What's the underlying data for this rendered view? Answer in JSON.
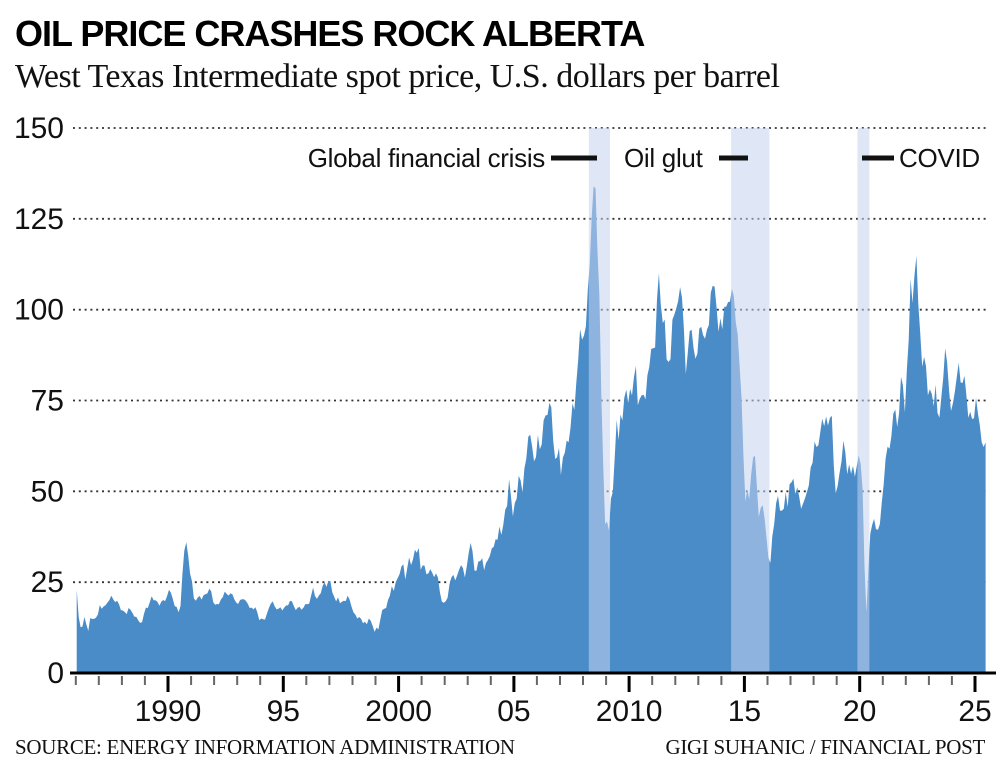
{
  "header": {
    "title": "OIL PRICE CRASHES ROCK ALBERTA",
    "subtitle": "West Texas Intermediate spot price, U.S. dollars per barrel"
  },
  "footer": {
    "source": "SOURCE: ENERGY INFORMATION ADMINISTRATION",
    "credit": "GIGI SUHANIC / FINANCIAL POST"
  },
  "chart_data": {
    "type": "area",
    "title": "OIL PRICE CRASHES ROCK ALBERTA",
    "subtitle": "West Texas Intermediate spot price, U.S. dollars per barrel",
    "series_name": "WTI spot price",
    "unit": "U.S. dollars per barrel",
    "frequency": "monthly",
    "start": "1986-01",
    "end": "2025-06",
    "ylim": [
      0,
      150
    ],
    "yticks": [
      0,
      25,
      50,
      75,
      100,
      125,
      150
    ],
    "xticks": [
      {
        "year": 1990,
        "label": "1990"
      },
      {
        "year": 1995,
        "label": "95"
      },
      {
        "year": 2000,
        "label": "2000"
      },
      {
        "year": 2005,
        "label": "05"
      },
      {
        "year": 2010,
        "label": "2010"
      },
      {
        "year": 2015,
        "label": "15"
      },
      {
        "year": 2020,
        "label": "20"
      },
      {
        "year": 2025,
        "label": "25"
      }
    ],
    "minor_ticks": "every year 1986-2025",
    "grid": "horizontal dotted",
    "legend": "none",
    "area_color": "#4a8cc8",
    "band_color": "rgba(197,211,240,0.55)",
    "bands": [
      {
        "label": "Global financial crisis",
        "start_year": 2008.25,
        "end_year": 2009.17
      },
      {
        "label": "Oil glut",
        "start_year": 2014.42,
        "end_year": 2016.08
      },
      {
        "label": "COVID",
        "start_year": 2019.9,
        "end_year": 2020.42
      }
    ],
    "values_by_year": {
      "1986": [
        22.9,
        15.4,
        12.6,
        12.8,
        15.4,
        13.4,
        11.6,
        15.1,
        14.9,
        14.9,
        15.2,
        16.1
      ],
      "1987": [
        18.7,
        17.7,
        18.3,
        18.7,
        19.4,
        20.1,
        21.3,
        20.3,
        19.5,
        19.9,
        18.9,
        17.3
      ],
      "1988": [
        17.2,
        16.8,
        16.2,
        17.9,
        17.4,
        16.5,
        15.5,
        15.5,
        14.5,
        13.8,
        14.0,
        16.3
      ],
      "1989": [
        18.0,
        17.9,
        19.4,
        21.1,
        20.0,
        20.0,
        19.6,
        18.5,
        19.6,
        20.1,
        19.8,
        21.1
      ],
      "1990": [
        22.9,
        22.1,
        20.4,
        18.4,
        18.2,
        16.7,
        18.4,
        27.2,
        33.7,
        36.0,
        32.3,
        27.3
      ],
      "1991": [
        25.2,
        20.5,
        19.9,
        20.8,
        21.2,
        20.2,
        21.4,
        21.7,
        21.9,
        23.2,
        22.5,
        19.5
      ],
      "1992": [
        18.8,
        19.0,
        18.9,
        20.2,
        20.9,
        22.4,
        21.8,
        21.3,
        21.9,
        21.7,
        20.3,
        19.4
      ],
      "1993": [
        19.0,
        20.1,
        20.3,
        20.3,
        19.9,
        19.1,
        17.9,
        18.0,
        17.5,
        18.1,
        16.7,
        14.5
      ],
      "1994": [
        15.0,
        14.8,
        14.7,
        16.4,
        17.9,
        19.1,
        19.7,
        18.4,
        17.5,
        17.7,
        18.1,
        17.2
      ],
      "1995": [
        18.0,
        18.6,
        18.6,
        19.9,
        19.7,
        18.4,
        17.3,
        18.0,
        18.2,
        17.4,
        18.0,
        19.0
      ],
      "1996": [
        18.9,
        19.1,
        21.3,
        23.5,
        21.2,
        20.4,
        21.3,
        22.0,
        24.0,
        24.9,
        23.7,
        25.4
      ],
      "1997": [
        25.2,
        22.2,
        21.0,
        19.7,
        20.8,
        19.2,
        19.6,
        19.9,
        19.8,
        21.3,
        20.2,
        18.3
      ],
      "1998": [
        16.7,
        16.1,
        15.0,
        15.4,
        14.9,
        13.7,
        14.1,
        13.4,
        15.0,
        14.4,
        13.0,
        11.3
      ],
      "1999": [
        12.5,
        12.0,
        14.7,
        17.3,
        17.7,
        17.9,
        20.1,
        21.3,
        23.9,
        22.6,
        25.0,
        26.1
      ],
      "2000": [
        27.2,
        29.4,
        29.9,
        25.7,
        28.8,
        31.8,
        29.7,
        31.3,
        33.9,
        33.1,
        34.4,
        28.4
      ],
      "2001": [
        29.6,
        29.6,
        27.2,
        27.4,
        28.6,
        27.6,
        26.4,
        27.4,
        26.2,
        22.2,
        19.7,
        19.3
      ],
      "2002": [
        19.7,
        20.7,
        24.4,
        26.3,
        27.0,
        25.5,
        26.9,
        28.4,
        29.7,
        28.9,
        26.3,
        29.4
      ],
      "2003": [
        33.0,
        35.8,
        33.5,
        28.2,
        28.1,
        30.7,
        30.8,
        31.6,
        28.3,
        30.3,
        31.1,
        32.2
      ],
      "2004": [
        34.3,
        34.7,
        36.8,
        36.7,
        40.3,
        38.0,
        40.8,
        44.9,
        46.0,
        53.3,
        48.5,
        43.1
      ],
      "2005": [
        46.8,
        48.0,
        54.3,
        53.0,
        49.8,
        56.3,
        59.0,
        65.0,
        65.6,
        62.4,
        58.3,
        59.4
      ],
      "2006": [
        65.5,
        61.6,
        62.9,
        69.5,
        70.9,
        71.0,
        74.4,
        73.1,
        63.9,
        58.9,
        59.4,
        62.0
      ],
      "2007": [
        54.5,
        59.3,
        60.6,
        64.0,
        63.5,
        67.5,
        74.2,
        72.4,
        79.9,
        86.2,
        94.6,
        91.7
      ],
      "2008": [
        92.9,
        95.4,
        105.5,
        112.6,
        125.4,
        133.9,
        133.4,
        116.6,
        103.9,
        76.7,
        57.4,
        41.0
      ],
      "2009": [
        41.7,
        39.2,
        48.0,
        49.8,
        59.2,
        69.7,
        64.1,
        71.1,
        69.5,
        75.8,
        78.0,
        74.3
      ],
      "2010": [
        78.2,
        76.4,
        81.3,
        84.5,
        73.7,
        75.4,
        76.4,
        76.6,
        75.3,
        81.9,
        84.3,
        89.2
      ],
      "2011": [
        89.4,
        89.6,
        102.9,
        110.0,
        101.3,
        96.3,
        97.3,
        86.3,
        85.6,
        86.4,
        97.2,
        98.6
      ],
      "2012": [
        100.3,
        102.3,
        106.2,
        103.3,
        94.7,
        82.3,
        87.9,
        94.1,
        94.5,
        89.5,
        86.5,
        87.9
      ],
      "2013": [
        94.8,
        95.3,
        93.0,
        92.0,
        94.5,
        95.8,
        104.7,
        106.6,
        106.3,
        100.5,
        93.9,
        97.6
      ],
      "2014": [
        94.6,
        100.8,
        100.8,
        102.1,
        102.2,
        105.8,
        103.6,
        96.5,
        93.2,
        84.4,
        75.8,
        59.3
      ],
      "2015": [
        47.2,
        50.6,
        47.8,
        54.4,
        59.3,
        59.8,
        51.2,
        42.9,
        45.5,
        46.2,
        42.4,
        37.2
      ],
      "2016": [
        31.7,
        30.3,
        37.6,
        41.0,
        46.7,
        48.8,
        44.7,
        44.7,
        45.2,
        49.8,
        45.7,
        52.0
      ],
      "2017": [
        52.5,
        53.5,
        49.3,
        51.1,
        48.5,
        45.2,
        46.6,
        48.0,
        49.8,
        51.6,
        56.6,
        57.9
      ],
      "2018": [
        63.7,
        62.2,
        62.7,
        66.3,
        70.0,
        67.9,
        70.6,
        68.1,
        70.2,
        70.8,
        57.0,
        49.5
      ],
      "2019": [
        51.4,
        55.0,
        58.2,
        63.9,
        60.8,
        54.7,
        57.4,
        54.8,
        57.0,
        54.0,
        57.0,
        59.9
      ],
      "2020": [
        57.5,
        50.5,
        29.2,
        16.6,
        28.6,
        38.3,
        40.8,
        42.4,
        39.6,
        39.4,
        41.0,
        47.0
      ],
      "2021": [
        52.0,
        59.0,
        62.3,
        61.7,
        65.2,
        71.4,
        72.5,
        67.7,
        71.6,
        81.5,
        79.2,
        71.7
      ],
      "2022": [
        83.2,
        91.6,
        108.5,
        101.8,
        109.5,
        114.8,
        101.6,
        93.7,
        84.3,
        87.0,
        84.4,
        76.4
      ],
      "2023": [
        78.1,
        76.8,
        73.4,
        79.4,
        71.6,
        70.3,
        76.1,
        81.4,
        89.4,
        85.5,
        77.7,
        72.1
      ],
      "2024": [
        74.2,
        77.3,
        81.3,
        85.4,
        80.0,
        79.8,
        81.8,
        76.7,
        70.2,
        71.9,
        69.9,
        70.1
      ],
      "2025": [
        75.7,
        71.5,
        68.2,
        63.5,
        62.2,
        63.5
      ]
    }
  }
}
